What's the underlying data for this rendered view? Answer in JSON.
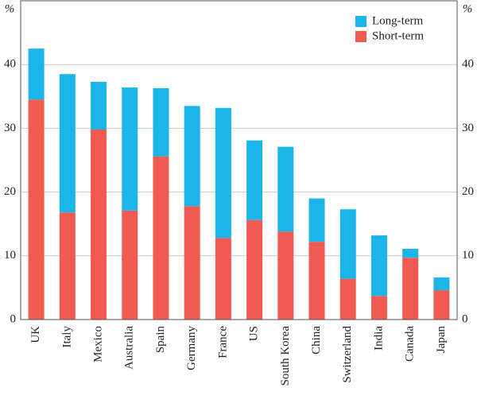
{
  "chart_data": {
    "type": "stacked_bar",
    "y_unit": "%",
    "categories": [
      "UK",
      "Italy",
      "Mexico",
      "Australia",
      "Spain",
      "Germany",
      "France",
      "US",
      "South Korea",
      "China",
      "Switzerland",
      "India",
      "Canada",
      "Japan"
    ],
    "series": [
      {
        "name": "Long-term",
        "color": "#1cb5ea",
        "values": [
          8.0,
          21.7,
          7.5,
          19.3,
          10.7,
          15.7,
          20.4,
          12.5,
          13.3,
          6.8,
          10.9,
          9.5,
          1.4,
          2.0
        ]
      },
      {
        "name": "Short-term",
        "color": "#f15a50",
        "values": [
          34.5,
          16.8,
          29.8,
          17.1,
          25.6,
          17.8,
          12.8,
          15.6,
          13.8,
          12.2,
          6.4,
          3.7,
          9.7,
          4.6
        ]
      }
    ],
    "ylim": [
      0,
      50
    ],
    "yticks": [
      0,
      10,
      20,
      30,
      40
    ],
    "grid": true,
    "legend": "top-right"
  }
}
